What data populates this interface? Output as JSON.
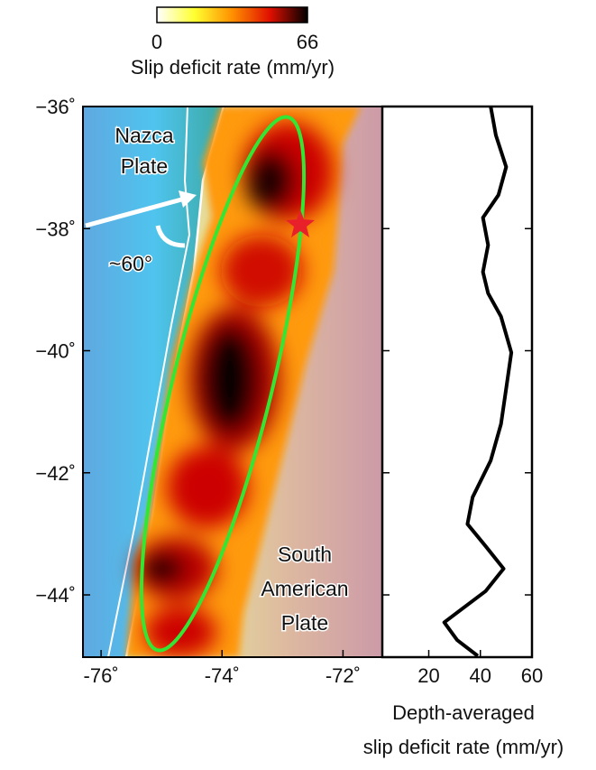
{
  "chart_data": [
    {
      "type": "map",
      "xlim": [
        -76.3,
        -71.35
      ],
      "ylim": [
        -45.02,
        -36
      ],
      "xticks": [
        {
          "value": -76,
          "label": "-76˚"
        },
        {
          "value": -74,
          "label": "-74˚"
        },
        {
          "value": -72,
          "label": "-72˚"
        }
      ],
      "yticks": [
        {
          "value": -36,
          "label": "−36˚"
        },
        {
          "value": -38,
          "label": "−38˚"
        },
        {
          "value": -40,
          "label": "−40˚"
        },
        {
          "value": -42,
          "label": "−42˚"
        },
        {
          "value": -44,
          "label": "−44˚"
        }
      ],
      "colorbar": {
        "label": "Slip deficit rate (mm/yr)",
        "ticks": [
          0,
          66
        ],
        "colors": [
          "#ffffff",
          "#ffff30",
          "#ff9000",
          "#e01000",
          "#000000"
        ]
      },
      "annotations": [
        {
          "lines": [
            "Nazca",
            "Plate"
          ]
        },
        {
          "lines": [
            "~60°"
          ]
        },
        {
          "lines": [
            "South",
            "American",
            "Plate"
          ]
        }
      ]
    },
    {
      "type": "line",
      "orientation": "horizontal",
      "xlabel": [
        "Depth-averaged",
        "slip deficit rate (mm/yr)"
      ],
      "xlim": [
        2,
        60
      ],
      "xticks": [
        20,
        40,
        60
      ],
      "ylim": [
        -45.02,
        -36
      ],
      "yticks": [
        -36,
        -38,
        -40,
        -42,
        -44
      ],
      "color": "#000000",
      "y": [
        -36,
        -36.47,
        -36.99,
        -37.45,
        -37.82,
        -38.27,
        -38.71,
        -39.06,
        -39.44,
        -40.03,
        -40.62,
        -41.2,
        -41.8,
        -42.4,
        -42.84,
        -43.2,
        -43.57,
        -43.94,
        -44.45,
        -44.74,
        -45
      ],
      "values": [
        44,
        46,
        50,
        47,
        41,
        43,
        41,
        43,
        48,
        52,
        50,
        48,
        44,
        37,
        35,
        42,
        49,
        42,
        26,
        31,
        39
      ]
    }
  ]
}
